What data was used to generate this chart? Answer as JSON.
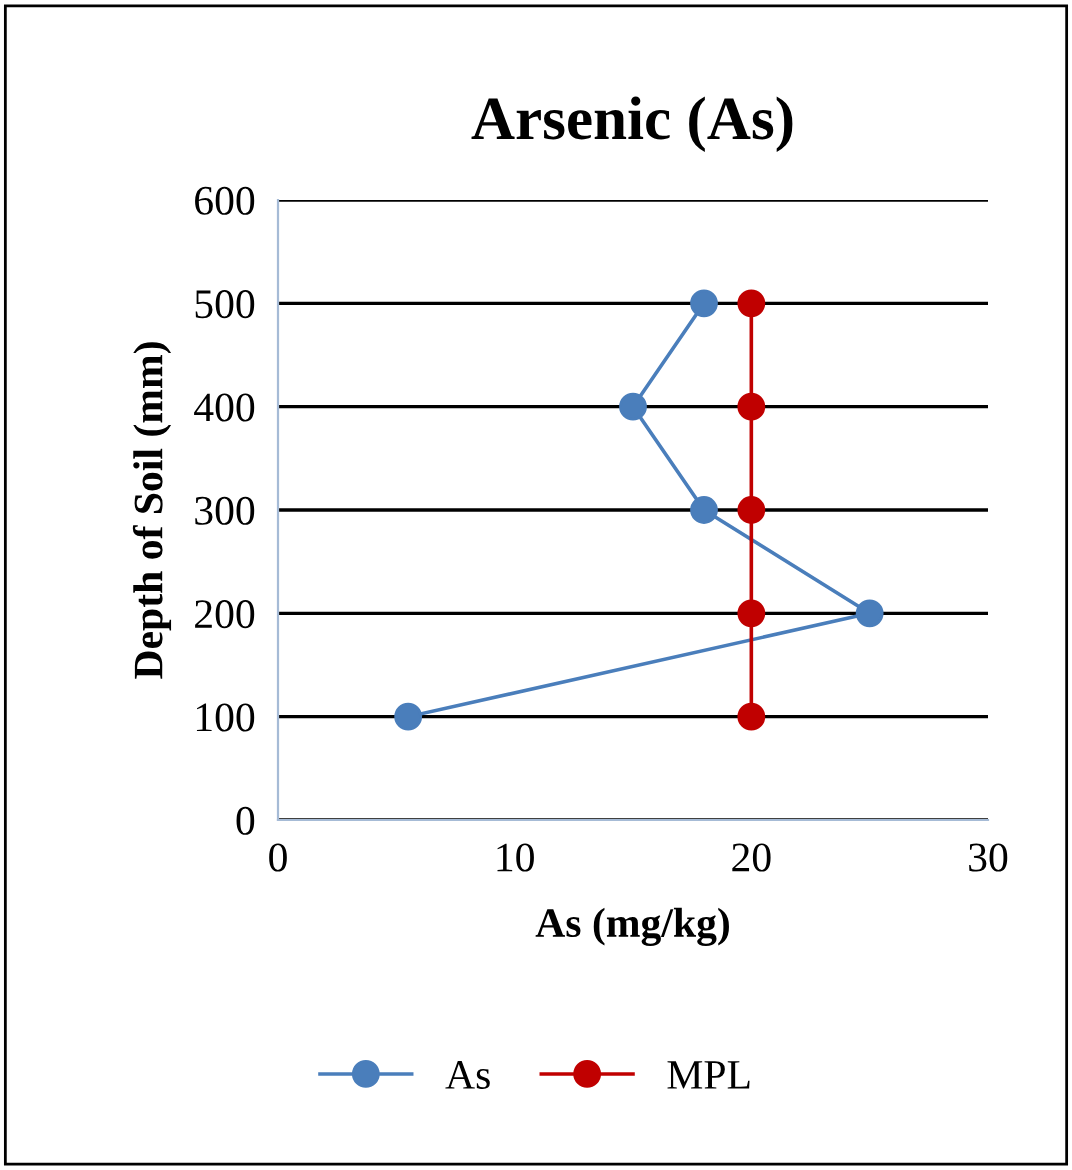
{
  "chart_data": {
    "type": "line",
    "title": "Arsenic (As)",
    "xlabel": "As (mg/kg)",
    "ylabel": "Depth of Soil (mm)",
    "series": [
      {
        "name": "As",
        "color": "#4a7ebb",
        "x": [
          5.5,
          25,
          18,
          15,
          18
        ],
        "values": [
          100,
          200,
          300,
          400,
          500
        ]
      },
      {
        "name": "MPL",
        "color": "#c00000",
        "x": [
          20,
          20,
          20,
          20,
          20
        ],
        "values": [
          100,
          200,
          300,
          400,
          500
        ]
      }
    ],
    "xlim": [
      0,
      30
    ],
    "xticks": [
      0,
      10,
      20,
      30
    ],
    "ylim": [
      0,
      600
    ],
    "yticks": [
      0,
      100,
      200,
      300,
      400,
      500,
      600
    ],
    "grid": "y",
    "legend": "bottom",
    "marker": "circle",
    "line_style": "solid"
  }
}
